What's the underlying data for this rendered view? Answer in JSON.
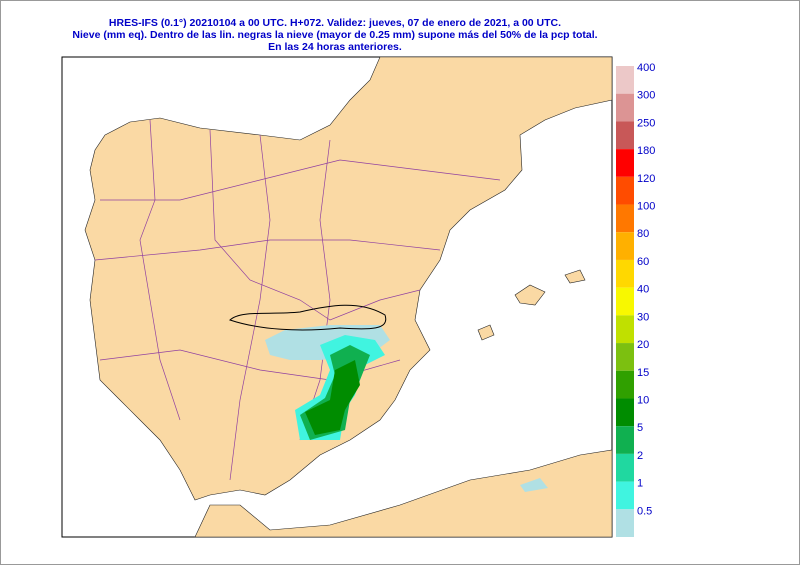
{
  "header": {
    "lines": [
      "HRES-IFS (0.1°) 20210104 a 00 UTC.  H+072. Validez: jueves, 07 de enero de 2021,  a  00 UTC.",
      "Nieve (mm eq). Dentro de las lin. negras la nieve (mayor de 0.25 mm) supone más del 50% de la pcp total.",
      "En las 24 horas anteriores."
    ]
  },
  "legend": {
    "entries": [
      {
        "label": "400",
        "color": "#ecc8c8"
      },
      {
        "label": "300",
        "color": "#dc9494"
      },
      {
        "label": "250",
        "color": "#c85858"
      },
      {
        "label": "180",
        "color": "#ff0000"
      },
      {
        "label": "120",
        "color": "#ff4c00"
      },
      {
        "label": "100",
        "color": "#ff7800"
      },
      {
        "label": "80",
        "color": "#ffb000"
      },
      {
        "label": "60",
        "color": "#ffd800"
      },
      {
        "label": "40",
        "color": "#f8f800"
      },
      {
        "label": "30",
        "color": "#c0e000"
      },
      {
        "label": "20",
        "color": "#7cc010"
      },
      {
        "label": "15",
        "color": "#30a000"
      },
      {
        "label": "10",
        "color": "#008c00"
      },
      {
        "label": "5",
        "color": "#10b050"
      },
      {
        "label": "2",
        "color": "#20d8a0"
      },
      {
        "label": "1",
        "color": "#40f4e0"
      },
      {
        "label": "0.5",
        "color": "#b0e0e4"
      }
    ]
  }
}
